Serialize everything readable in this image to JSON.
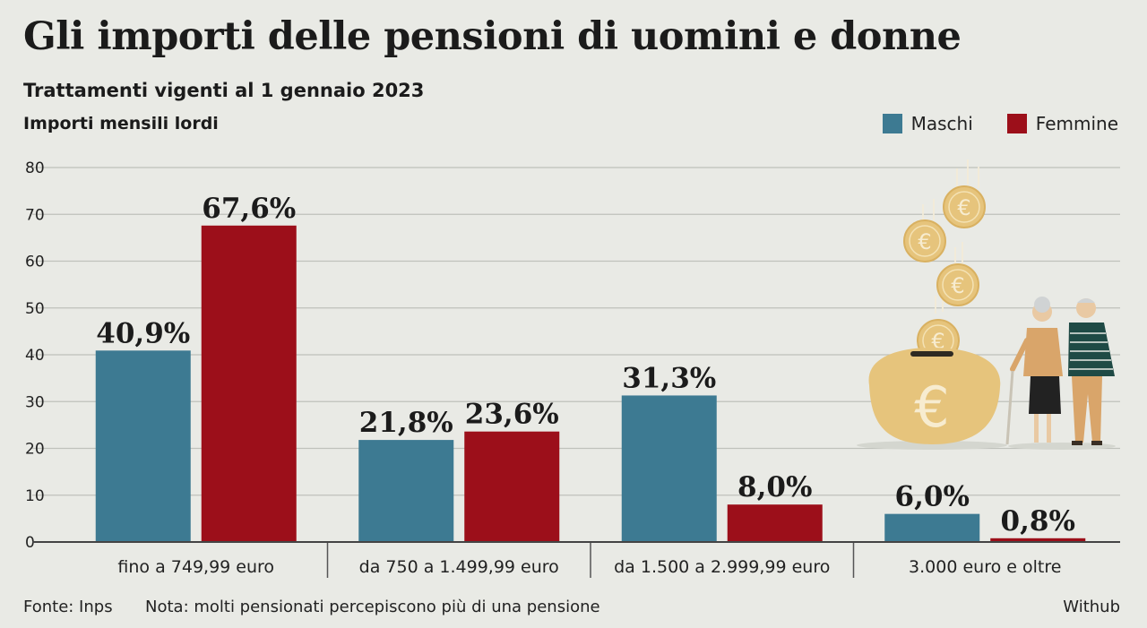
{
  "chart_data": {
    "type": "bar",
    "title": "Gli importi delle pensioni di uomini e donne",
    "subtitle": "Trattamenti vigenti al 1 gennaio 2023",
    "ylabel": "Importi mensili lordi",
    "xlabel": "",
    "categories": [
      "fino a 749,99 euro",
      "da 750 a 1.499,99 euro",
      "da 1.500 a 2.999,99 euro",
      "3.000 euro e oltre"
    ],
    "series": [
      {
        "name": "Maschi",
        "color": "#3d7a92",
        "values": [
          40.9,
          21.8,
          31.3,
          6.0
        ],
        "labels": [
          "40,9%",
          "21,8%",
          "31,3%",
          "6,0%"
        ]
      },
      {
        "name": "Femmine",
        "color": "#9c0f1a",
        "values": [
          67.6,
          23.6,
          8.0,
          0.8
        ],
        "labels": [
          "67,6%",
          "23,6%",
          "8,0%",
          "0,8%"
        ]
      }
    ],
    "ylim": [
      0,
      80
    ],
    "yticks": [
      0,
      10,
      20,
      30,
      40,
      50,
      60,
      70,
      80
    ],
    "grid": true,
    "legend_position": "top-right"
  },
  "footer": {
    "source": "Fonte: Inps",
    "note": "Nota: molti pensionati percepiscono più di una pensione",
    "credit": "Withub"
  },
  "illustration": {
    "coin_symbol": "€",
    "coin_color": "#e6c47c",
    "description_icons": [
      "euro-coin-icon",
      "piggy-bank-icon",
      "elderly-couple-icon"
    ]
  }
}
